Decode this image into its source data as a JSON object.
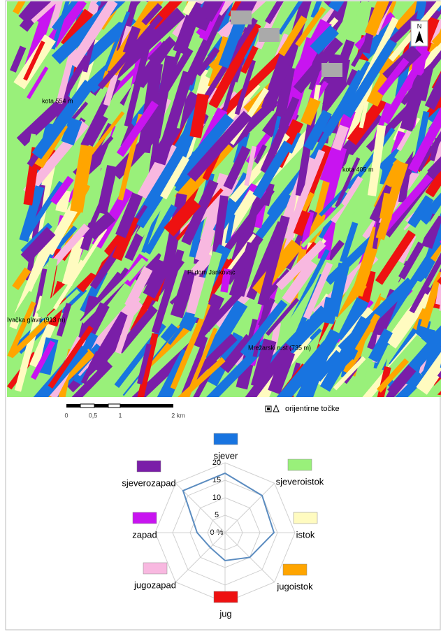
{
  "map": {
    "labels": [
      "kota 554 m",
      "kota 405 m",
      "Pl.dom Jankovac",
      "Ivačka glava (913 m)",
      "Mrežarski rust (735 m)"
    ],
    "scale_bar": [
      "0",
      "0,5",
      "1",
      "2 km"
    ],
    "legend": "orijentirne točke"
  },
  "chart_data": {
    "type": "radar",
    "categories": [
      "sjever",
      "sjeveroistok",
      "istok",
      "jugoistok",
      "jug",
      "jugozapad",
      "zapad",
      "sjeverozapad"
    ],
    "category_colors": [
      "#1874e0",
      "#99f07a",
      "#fffbc0",
      "#ffa500",
      "#ee1111",
      "#f8b8e0",
      "#c814f0",
      "#7a1ea8"
    ],
    "values": [
      17,
      15,
      14,
      10,
      8,
      6,
      8,
      17
    ],
    "color": "#5b8cc0",
    "ylim": [
      0,
      20
    ],
    "yticks": [
      {
        "value": 0,
        "label": "0 %"
      },
      5,
      10,
      15,
      20
    ]
  }
}
